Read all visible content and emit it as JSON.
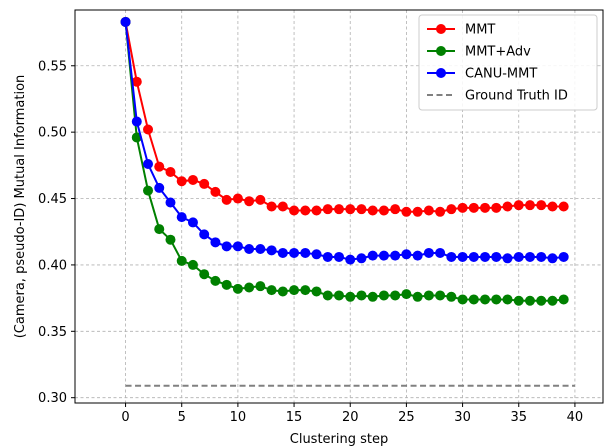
{
  "chart_data": {
    "type": "line",
    "xlabel": "Clustering step",
    "ylabel": "(Camera, pseudo-ID) Mutual Information",
    "xlim": [
      -4.5,
      42.5
    ],
    "ylim": [
      0.296,
      0.592
    ],
    "xticks": [
      0,
      5,
      10,
      15,
      20,
      25,
      30,
      35,
      40
    ],
    "yticks": [
      0.3,
      0.35,
      0.4,
      0.45,
      0.5,
      0.55
    ],
    "ytick_labels": [
      "0.30",
      "0.35",
      "0.40",
      "0.45",
      "0.50",
      "0.55"
    ],
    "grid": true,
    "legend_position": "top-right",
    "x": [
      0,
      1,
      2,
      3,
      4,
      5,
      6,
      7,
      8,
      9,
      10,
      11,
      12,
      13,
      14,
      15,
      16,
      17,
      18,
      19,
      20,
      21,
      22,
      23,
      24,
      25,
      26,
      27,
      28,
      29,
      30,
      31,
      32,
      33,
      34,
      35,
      36,
      37,
      38,
      39
    ],
    "series": [
      {
        "name": "MMT",
        "color": "#ff0000",
        "values": [
          0.583,
          0.538,
          0.502,
          0.474,
          0.47,
          0.463,
          0.464,
          0.461,
          0.455,
          0.449,
          0.45,
          0.448,
          0.449,
          0.444,
          0.444,
          0.441,
          0.441,
          0.441,
          0.442,
          0.442,
          0.442,
          0.442,
          0.441,
          0.441,
          0.442,
          0.44,
          0.44,
          0.441,
          0.44,
          0.442,
          0.443,
          0.443,
          0.443,
          0.443,
          0.444,
          0.445,
          0.445,
          0.445,
          0.444,
          0.444
        ]
      },
      {
        "name": "MMT+Adv",
        "color": "#008000",
        "values": [
          0.583,
          0.496,
          0.456,
          0.427,
          0.419,
          0.403,
          0.4,
          0.393,
          0.388,
          0.385,
          0.382,
          0.383,
          0.384,
          0.381,
          0.38,
          0.381,
          0.381,
          0.38,
          0.377,
          0.377,
          0.376,
          0.377,
          0.376,
          0.377,
          0.377,
          0.378,
          0.376,
          0.377,
          0.377,
          0.376,
          0.374,
          0.374,
          0.374,
          0.374,
          0.374,
          0.373,
          0.373,
          0.373,
          0.373,
          0.374
        ]
      },
      {
        "name": "CANU-MMT",
        "color": "#0000ff",
        "values": [
          0.583,
          0.508,
          0.476,
          0.458,
          0.447,
          0.436,
          0.432,
          0.423,
          0.417,
          0.414,
          0.414,
          0.412,
          0.412,
          0.411,
          0.409,
          0.409,
          0.409,
          0.408,
          0.406,
          0.406,
          0.404,
          0.405,
          0.407,
          0.407,
          0.407,
          0.408,
          0.407,
          0.409,
          0.409,
          0.406,
          0.406,
          0.406,
          0.406,
          0.406,
          0.405,
          0.406,
          0.406,
          0.406,
          0.405,
          0.406
        ]
      },
      {
        "name": "Ground Truth ID",
        "color": "#808080",
        "dashed": true,
        "x_range": [
          0,
          40
        ],
        "value": 0.309
      }
    ]
  }
}
